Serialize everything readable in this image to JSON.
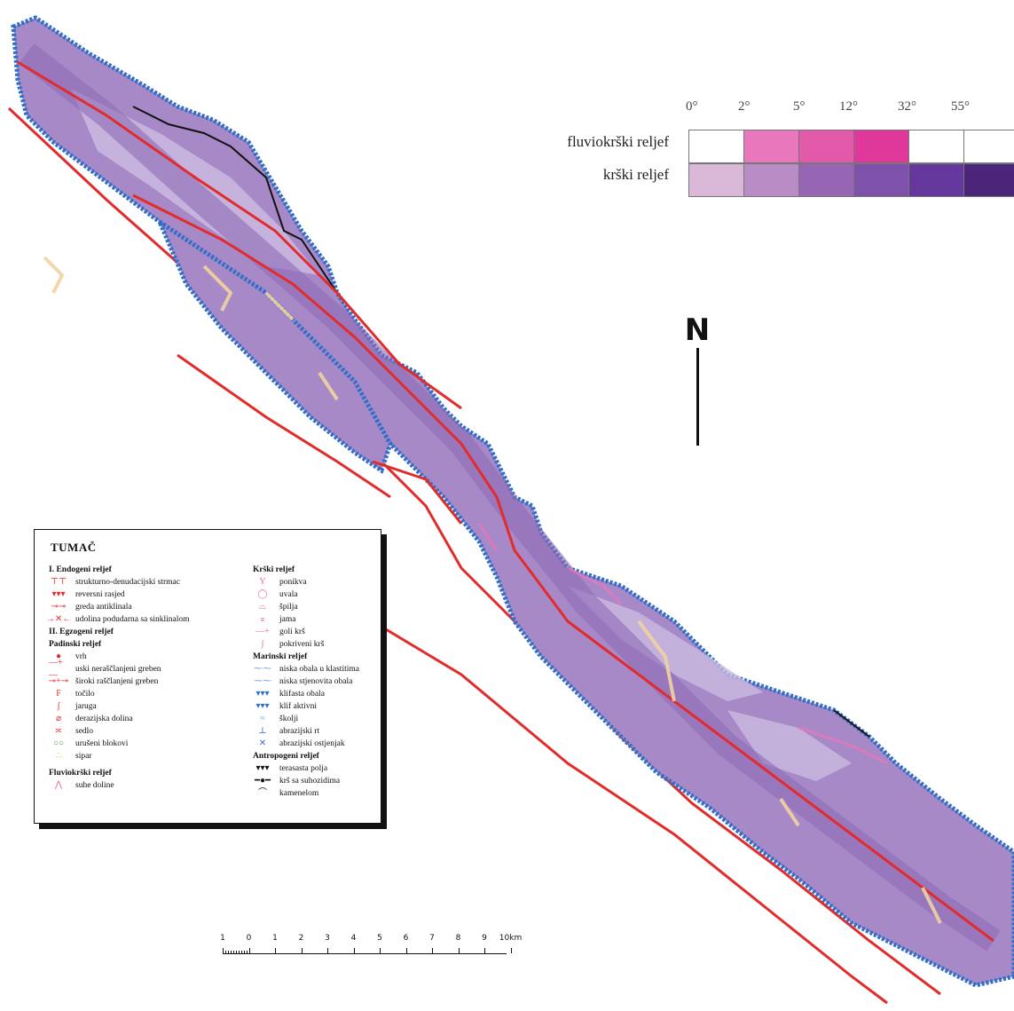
{
  "slope_legend": {
    "degrees": [
      "0°",
      "2°",
      "5°",
      "12°",
      "32°",
      "55°"
    ],
    "rows": [
      {
        "label": "fluviokrški reljef",
        "colors": [
          "#ffffff",
          "#e877bb",
          "#e35aaa",
          "#e0379a",
          "#ffffff",
          "#ffffff"
        ]
      },
      {
        "label": "krški reljef",
        "colors": [
          "#d9b8d8",
          "#b98cc6",
          "#9666b4",
          "#7e52ab",
          "#65389d",
          "#4a2579"
        ]
      }
    ]
  },
  "north": {
    "letter": "N"
  },
  "colors": {
    "island_fill": "#a889c7",
    "island_dark": "#8d6bb5",
    "island_light": "#cbbbe0",
    "coast": "#2f6fc8",
    "fault": "#e22b2b",
    "dry_valley": "#f0d3a0",
    "coast_black": "#111111"
  },
  "tumac": {
    "title": "TUMAČ",
    "left_column": [
      {
        "type": "head",
        "text": "I. Endogeni reljef"
      },
      {
        "type": "item",
        "icon": "escarpment-icon",
        "symbol": "⊤⊤",
        "color": "#e22b2b",
        "text": "strukturno-denudacijski strmac"
      },
      {
        "type": "item",
        "icon": "reverse-fault-icon",
        "symbol": "▾▾▾",
        "color": "#e22b2b",
        "text": "reversni rasjed"
      },
      {
        "type": "item",
        "icon": "anticline-icon",
        "symbol": "⊸⊸",
        "color": "#e22b2b",
        "text": "greda antiklinala"
      },
      {
        "type": "item",
        "icon": "syncline-icon",
        "symbol": "→✕←",
        "color": "#e22b2b",
        "text": "udolina podudarna sa sinklinalom"
      },
      {
        "type": "head",
        "text": "II. Egzogeni reljef"
      },
      {
        "type": "head",
        "text": "Padinski reljef"
      },
      {
        "type": "item",
        "icon": "peak-icon",
        "symbol": "●",
        "color": "#e22b2b",
        "text": "vrh"
      },
      {
        "type": "item",
        "icon": "narrow-ridge-icon",
        "symbol": "—+—",
        "color": "#e22b2b",
        "text": "uski neraščlanjeni greben"
      },
      {
        "type": "item",
        "icon": "wide-ridge-icon",
        "symbol": "⊸+⊸",
        "color": "#e22b2b",
        "text": "široki raščlanjeni greben"
      },
      {
        "type": "item",
        "icon": "chute-icon",
        "symbol": "F",
        "color": "#e22b2b",
        "text": "točilo"
      },
      {
        "type": "item",
        "icon": "gully-icon",
        "symbol": "ʃ",
        "color": "#e22b2b",
        "text": "jaruga"
      },
      {
        "type": "item",
        "icon": "derasion-valley-icon",
        "symbol": "⌀",
        "color": "#e22b2b",
        "text": "derazijska dolina"
      },
      {
        "type": "item",
        "icon": "saddle-icon",
        "symbol": "≍",
        "color": "#e22b2b",
        "text": "sedlo"
      },
      {
        "type": "item",
        "icon": "collapsed-blocks-icon",
        "symbol": "○○",
        "color": "#4aa23a",
        "text": "urušeni blokovi"
      },
      {
        "type": "item",
        "icon": "scree-icon",
        "symbol": "∴",
        "color": "#c8c227",
        "text": "sipar"
      },
      {
        "type": "gap"
      },
      {
        "type": "head",
        "text": "Fluviokrški reljef"
      },
      {
        "type": "item",
        "icon": "dry-valley-icon",
        "symbol": "⋀",
        "color": "#e06aa8",
        "text": "suhe doline"
      }
    ],
    "right_column": [
      {
        "type": "head",
        "text": "Krški reljef"
      },
      {
        "type": "item",
        "icon": "sinkhole-icon",
        "symbol": "Y",
        "color": "#e06aa8",
        "text": "ponikva"
      },
      {
        "type": "item",
        "icon": "uvala-icon",
        "symbol": "◯",
        "color": "#e06aa8",
        "text": "uvala"
      },
      {
        "type": "item",
        "icon": "cave-icon",
        "symbol": "⌓",
        "color": "#e06aa8",
        "text": "špilja"
      },
      {
        "type": "item",
        "icon": "pit-icon",
        "symbol": "⌅",
        "color": "#e06aa8",
        "text": "jama"
      },
      {
        "type": "item",
        "icon": "bare-karst-icon",
        "symbol": "—+",
        "color": "#e06aa8",
        "text": "goli krš"
      },
      {
        "type": "item",
        "icon": "covered-karst-icon",
        "symbol": "∫",
        "color": "#e06aa8",
        "text": "pokriveni krš"
      },
      {
        "type": "head",
        "text": "Marinski reljef"
      },
      {
        "type": "item",
        "icon": "low-clastic-coast-icon",
        "symbol": "⁓⁓",
        "color": "#6f9fe0",
        "text": "niska obala u klastitima"
      },
      {
        "type": "item",
        "icon": "low-rocky-coast-icon",
        "symbol": "⁓⁓",
        "color": "#6f9fe0",
        "text": "niska stjenovita obala"
      },
      {
        "type": "item",
        "icon": "cliff-coast-icon",
        "symbol": "▾▾▾",
        "color": "#2f6fc8",
        "text": "klifasta obala"
      },
      {
        "type": "item",
        "icon": "active-cliff-icon",
        "symbol": "▾▾▾",
        "color": "#2f6fc8",
        "text": "klif aktivni"
      },
      {
        "type": "item",
        "icon": "islet-icon",
        "symbol": "≈",
        "color": "#6f9fe0",
        "text": "školji"
      },
      {
        "type": "item",
        "icon": "abrasion-cape-icon",
        "symbol": "⊥",
        "color": "#2f6fc8",
        "text": "abrazijski rt"
      },
      {
        "type": "item",
        "icon": "abrasion-remnant-icon",
        "symbol": "✕",
        "color": "#2f6fc8",
        "text": "abrazijski ostjenjak"
      },
      {
        "type": "head",
        "text": "Antropogeni reljef"
      },
      {
        "type": "item",
        "icon": "terraced-fields-icon",
        "symbol": "▾▾▾",
        "color": "#111111",
        "text": "terasasta polja"
      },
      {
        "type": "item",
        "icon": "dry-wall-karst-icon",
        "symbol": "━●━",
        "color": "#111111",
        "text": "krš sa suhozidima"
      },
      {
        "type": "item",
        "icon": "stone-pile-icon",
        "symbol": "⌒",
        "color": "#111111",
        "text": "kamenelom"
      }
    ]
  },
  "scale": {
    "labels": [
      "1",
      "0",
      "1",
      "2",
      "3",
      "4",
      "5",
      "6",
      "7",
      "8",
      "9",
      "10km"
    ]
  }
}
